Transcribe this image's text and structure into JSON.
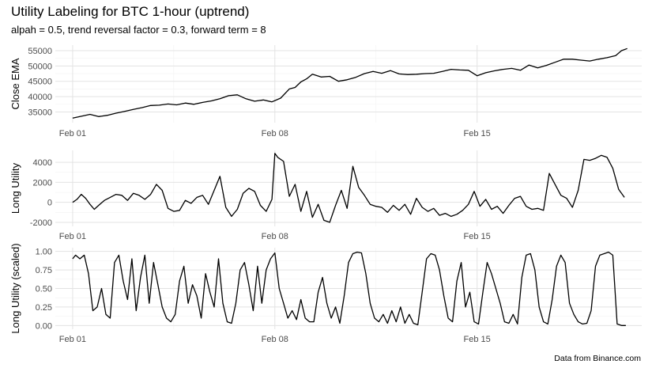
{
  "title": "Utility Labeling for BTC 1-hour (uptrend)",
  "subtitle": "alpah = 0.5, trend reversal factor = 0.3, forward term = 8",
  "caption": "Data from Binance.com",
  "colors": {
    "line": "#000000",
    "grid_major": "#e3e3e3",
    "grid_minor": "#f2f2f2",
    "tick_text": "#4d4d4d"
  },
  "chart_data": [
    {
      "type": "line",
      "ylabel": "Close EMA",
      "x_ticks": [
        "Feb 01",
        "Feb 08",
        "Feb 15"
      ],
      "x_tick_days": [
        0,
        7,
        14
      ],
      "xlim_days": [
        -0.6,
        19.7
      ],
      "ylim": [
        31500,
        56800
      ],
      "y_ticks": [
        35000,
        40000,
        45000,
        50000,
        55000
      ],
      "y_tick_labels": [
        "35000",
        "40000",
        "45000",
        "50000",
        "55000"
      ],
      "grid": true,
      "series": [
        {
          "x": [
            0,
            0.3,
            0.6,
            0.9,
            1.2,
            1.5,
            1.8,
            2.1,
            2.4,
            2.7,
            3.0,
            3.3,
            3.6,
            3.9,
            4.2,
            4.5,
            4.8,
            5.1,
            5.4,
            5.7,
            6.0,
            6.3,
            6.6,
            6.9,
            7.2,
            7.5,
            7.7,
            7.9,
            8.1,
            8.3,
            8.6,
            8.9,
            9.2,
            9.5,
            9.8,
            10.1,
            10.4,
            10.7,
            11.0,
            11.3,
            11.6,
            11.9,
            12.2,
            12.5,
            12.8,
            13.1,
            13.4,
            13.7,
            14.0,
            14.3,
            14.6,
            14.9,
            15.2,
            15.5,
            15.8,
            16.1,
            16.4,
            16.7,
            17.0,
            17.3,
            17.6,
            17.9,
            18.2,
            18.5,
            18.8,
            19.0,
            19.2
          ],
          "y": [
            33000,
            33600,
            34200,
            33500,
            33900,
            34600,
            35200,
            35800,
            36400,
            37100,
            37200,
            37600,
            37300,
            37900,
            37500,
            38100,
            38600,
            39300,
            40300,
            40600,
            39300,
            38500,
            38900,
            38300,
            39500,
            42500,
            43000,
            44800,
            45800,
            47300,
            46400,
            46600,
            45000,
            45500,
            46300,
            47500,
            48200,
            47600,
            48500,
            47400,
            47200,
            47300,
            47500,
            47600,
            48200,
            48900,
            48700,
            48600,
            46800,
            47800,
            48400,
            48900,
            49200,
            48600,
            50300,
            49400,
            50200,
            51200,
            52200,
            52200,
            51900,
            51600,
            52200,
            52700,
            53400,
            55000,
            55700
          ]
        }
      ]
    },
    {
      "type": "line",
      "ylabel": "Long Utility",
      "x_ticks": [
        "Feb 01",
        "Feb 08",
        "Feb 15"
      ],
      "x_tick_days": [
        0,
        7,
        14
      ],
      "xlim_days": [
        -0.6,
        19.7
      ],
      "ylim": [
        -2400,
        5200
      ],
      "y_ticks": [
        -2000,
        0,
        2000,
        4000
      ],
      "y_tick_labels": [
        "-2000",
        "0",
        "2000",
        "4000"
      ],
      "grid": true,
      "series": [
        {
          "x": [
            0,
            0.15,
            0.3,
            0.45,
            0.6,
            0.75,
            0.9,
            1.1,
            1.3,
            1.5,
            1.7,
            1.9,
            2.1,
            2.3,
            2.5,
            2.7,
            2.9,
            3.1,
            3.3,
            3.5,
            3.7,
            3.9,
            4.1,
            4.3,
            4.5,
            4.7,
            4.9,
            5.1,
            5.3,
            5.5,
            5.7,
            5.9,
            6.1,
            6.3,
            6.5,
            6.7,
            6.9,
            7.0,
            7.1,
            7.3,
            7.5,
            7.7,
            7.9,
            8.1,
            8.3,
            8.5,
            8.7,
            8.9,
            9.1,
            9.3,
            9.5,
            9.7,
            9.9,
            10.1,
            10.3,
            10.5,
            10.7,
            10.9,
            11.1,
            11.3,
            11.5,
            11.7,
            11.9,
            12.1,
            12.3,
            12.5,
            12.7,
            12.9,
            13.1,
            13.3,
            13.5,
            13.7,
            13.9,
            14.1,
            14.3,
            14.5,
            14.7,
            14.9,
            15.1,
            15.3,
            15.5,
            15.7,
            15.9,
            16.1,
            16.3,
            16.5,
            16.7,
            16.9,
            17.1,
            17.3,
            17.5,
            17.7,
            17.9,
            18.1,
            18.3,
            18.5,
            18.7,
            18.9,
            19.1
          ],
          "y": [
            0,
            300,
            800,
            400,
            -200,
            -700,
            -300,
            200,
            500,
            800,
            700,
            200,
            900,
            700,
            300,
            800,
            1800,
            1200,
            -600,
            -900,
            -800,
            200,
            -100,
            500,
            700,
            -200,
            1200,
            2600,
            -500,
            -1400,
            -700,
            900,
            1400,
            1100,
            -300,
            -900,
            300,
            4900,
            4500,
            4100,
            600,
            1800,
            -900,
            1100,
            -1500,
            -200,
            -1800,
            -2000,
            -300,
            1200,
            -600,
            3600,
            1500,
            700,
            -200,
            -400,
            -500,
            -1000,
            -300,
            -800,
            -200,
            -1200,
            400,
            -500,
            -900,
            -600,
            -1300,
            -1100,
            -1400,
            -1200,
            -800,
            -200,
            1100,
            -400,
            300,
            -700,
            -400,
            -1100,
            -300,
            400,
            600,
            -400,
            -700,
            -600,
            -800,
            2900,
            1800,
            700,
            400,
            -500,
            1200,
            4300,
            4200,
            4400,
            4700,
            4500,
            3400,
            1300,
            500
          ]
        }
      ]
    },
    {
      "type": "line",
      "ylabel": "Long Utility (scaled)",
      "x_ticks": [
        "Feb 01",
        "Feb 08",
        "Feb 15"
      ],
      "x_tick_days": [
        0,
        7,
        14
      ],
      "xlim_days": [
        -0.6,
        19.7
      ],
      "ylim": [
        -0.05,
        1.05
      ],
      "y_ticks": [
        0,
        0.25,
        0.5,
        0.75,
        1
      ],
      "y_tick_labels": [
        "0.00",
        "0.25",
        "0.50",
        "0.75",
        "1.00"
      ],
      "grid": true,
      "series": [
        {
          "x": [
            0,
            0.1,
            0.25,
            0.4,
            0.55,
            0.7,
            0.85,
            1.0,
            1.15,
            1.3,
            1.45,
            1.6,
            1.75,
            1.9,
            2.05,
            2.2,
            2.35,
            2.5,
            2.65,
            2.8,
            2.95,
            3.1,
            3.25,
            3.4,
            3.55,
            3.7,
            3.85,
            4.0,
            4.15,
            4.3,
            4.45,
            4.6,
            4.75,
            4.9,
            5.05,
            5.2,
            5.35,
            5.5,
            5.65,
            5.8,
            5.95,
            6.1,
            6.25,
            6.4,
            6.55,
            6.7,
            6.85,
            7.0,
            7.15,
            7.3,
            7.45,
            7.6,
            7.75,
            7.9,
            8.05,
            8.2,
            8.35,
            8.5,
            8.65,
            8.8,
            8.95,
            9.1,
            9.25,
            9.4,
            9.55,
            9.7,
            9.85,
            10.0,
            10.15,
            10.3,
            10.45,
            10.6,
            10.75,
            10.9,
            11.05,
            11.2,
            11.35,
            11.5,
            11.65,
            11.8,
            11.95,
            12.1,
            12.25,
            12.4,
            12.55,
            12.7,
            12.85,
            13.0,
            13.15,
            13.3,
            13.45,
            13.6,
            13.75,
            13.9,
            14.05,
            14.2,
            14.35,
            14.5,
            14.65,
            14.8,
            14.95,
            15.1,
            15.25,
            15.4,
            15.55,
            15.7,
            15.85,
            16.0,
            16.15,
            16.3,
            16.45,
            16.6,
            16.75,
            16.9,
            17.05,
            17.2,
            17.35,
            17.5,
            17.65,
            17.8,
            17.95,
            18.1,
            18.25,
            18.4,
            18.55,
            18.7,
            18.85,
            19.0,
            19.15
          ],
          "y": [
            0.9,
            0.95,
            0.9,
            0.95,
            0.7,
            0.2,
            0.25,
            0.5,
            0.15,
            0.1,
            0.85,
            0.95,
            0.6,
            0.35,
            0.9,
            0.2,
            0.65,
            0.95,
            0.3,
            0.85,
            0.55,
            0.25,
            0.1,
            0.05,
            0.15,
            0.6,
            0.8,
            0.3,
            0.55,
            0.4,
            0.1,
            0.7,
            0.45,
            0.25,
            0.9,
            0.3,
            0.05,
            0.03,
            0.3,
            0.75,
            0.85,
            0.55,
            0.2,
            0.8,
            0.3,
            0.75,
            0.9,
            0.98,
            0.5,
            0.3,
            0.1,
            0.2,
            0.08,
            0.35,
            0.1,
            0.05,
            0.05,
            0.45,
            0.65,
            0.3,
            0.1,
            0.25,
            0.03,
            0.4,
            0.85,
            0.97,
            0.99,
            0.98,
            0.7,
            0.3,
            0.1,
            0.05,
            0.15,
            0.03,
            0.2,
            0.05,
            0.25,
            0.03,
            0.15,
            0.03,
            0.01,
            0.45,
            0.9,
            0.97,
            0.95,
            0.75,
            0.4,
            0.1,
            0.05,
            0.6,
            0.85,
            0.25,
            0.45,
            0.05,
            0.02,
            0.45,
            0.85,
            0.7,
            0.5,
            0.3,
            0.05,
            0.03,
            0.15,
            0.02,
            0.65,
            0.95,
            0.97,
            0.75,
            0.25,
            0.05,
            0.02,
            0.35,
            0.8,
            0.95,
            0.85,
            0.3,
            0.15,
            0.05,
            0.02,
            0.03,
            0.2,
            0.8,
            0.95,
            0.97,
            0.99,
            0.95,
            0.02,
            0.0,
            0.0
          ]
        }
      ]
    }
  ]
}
